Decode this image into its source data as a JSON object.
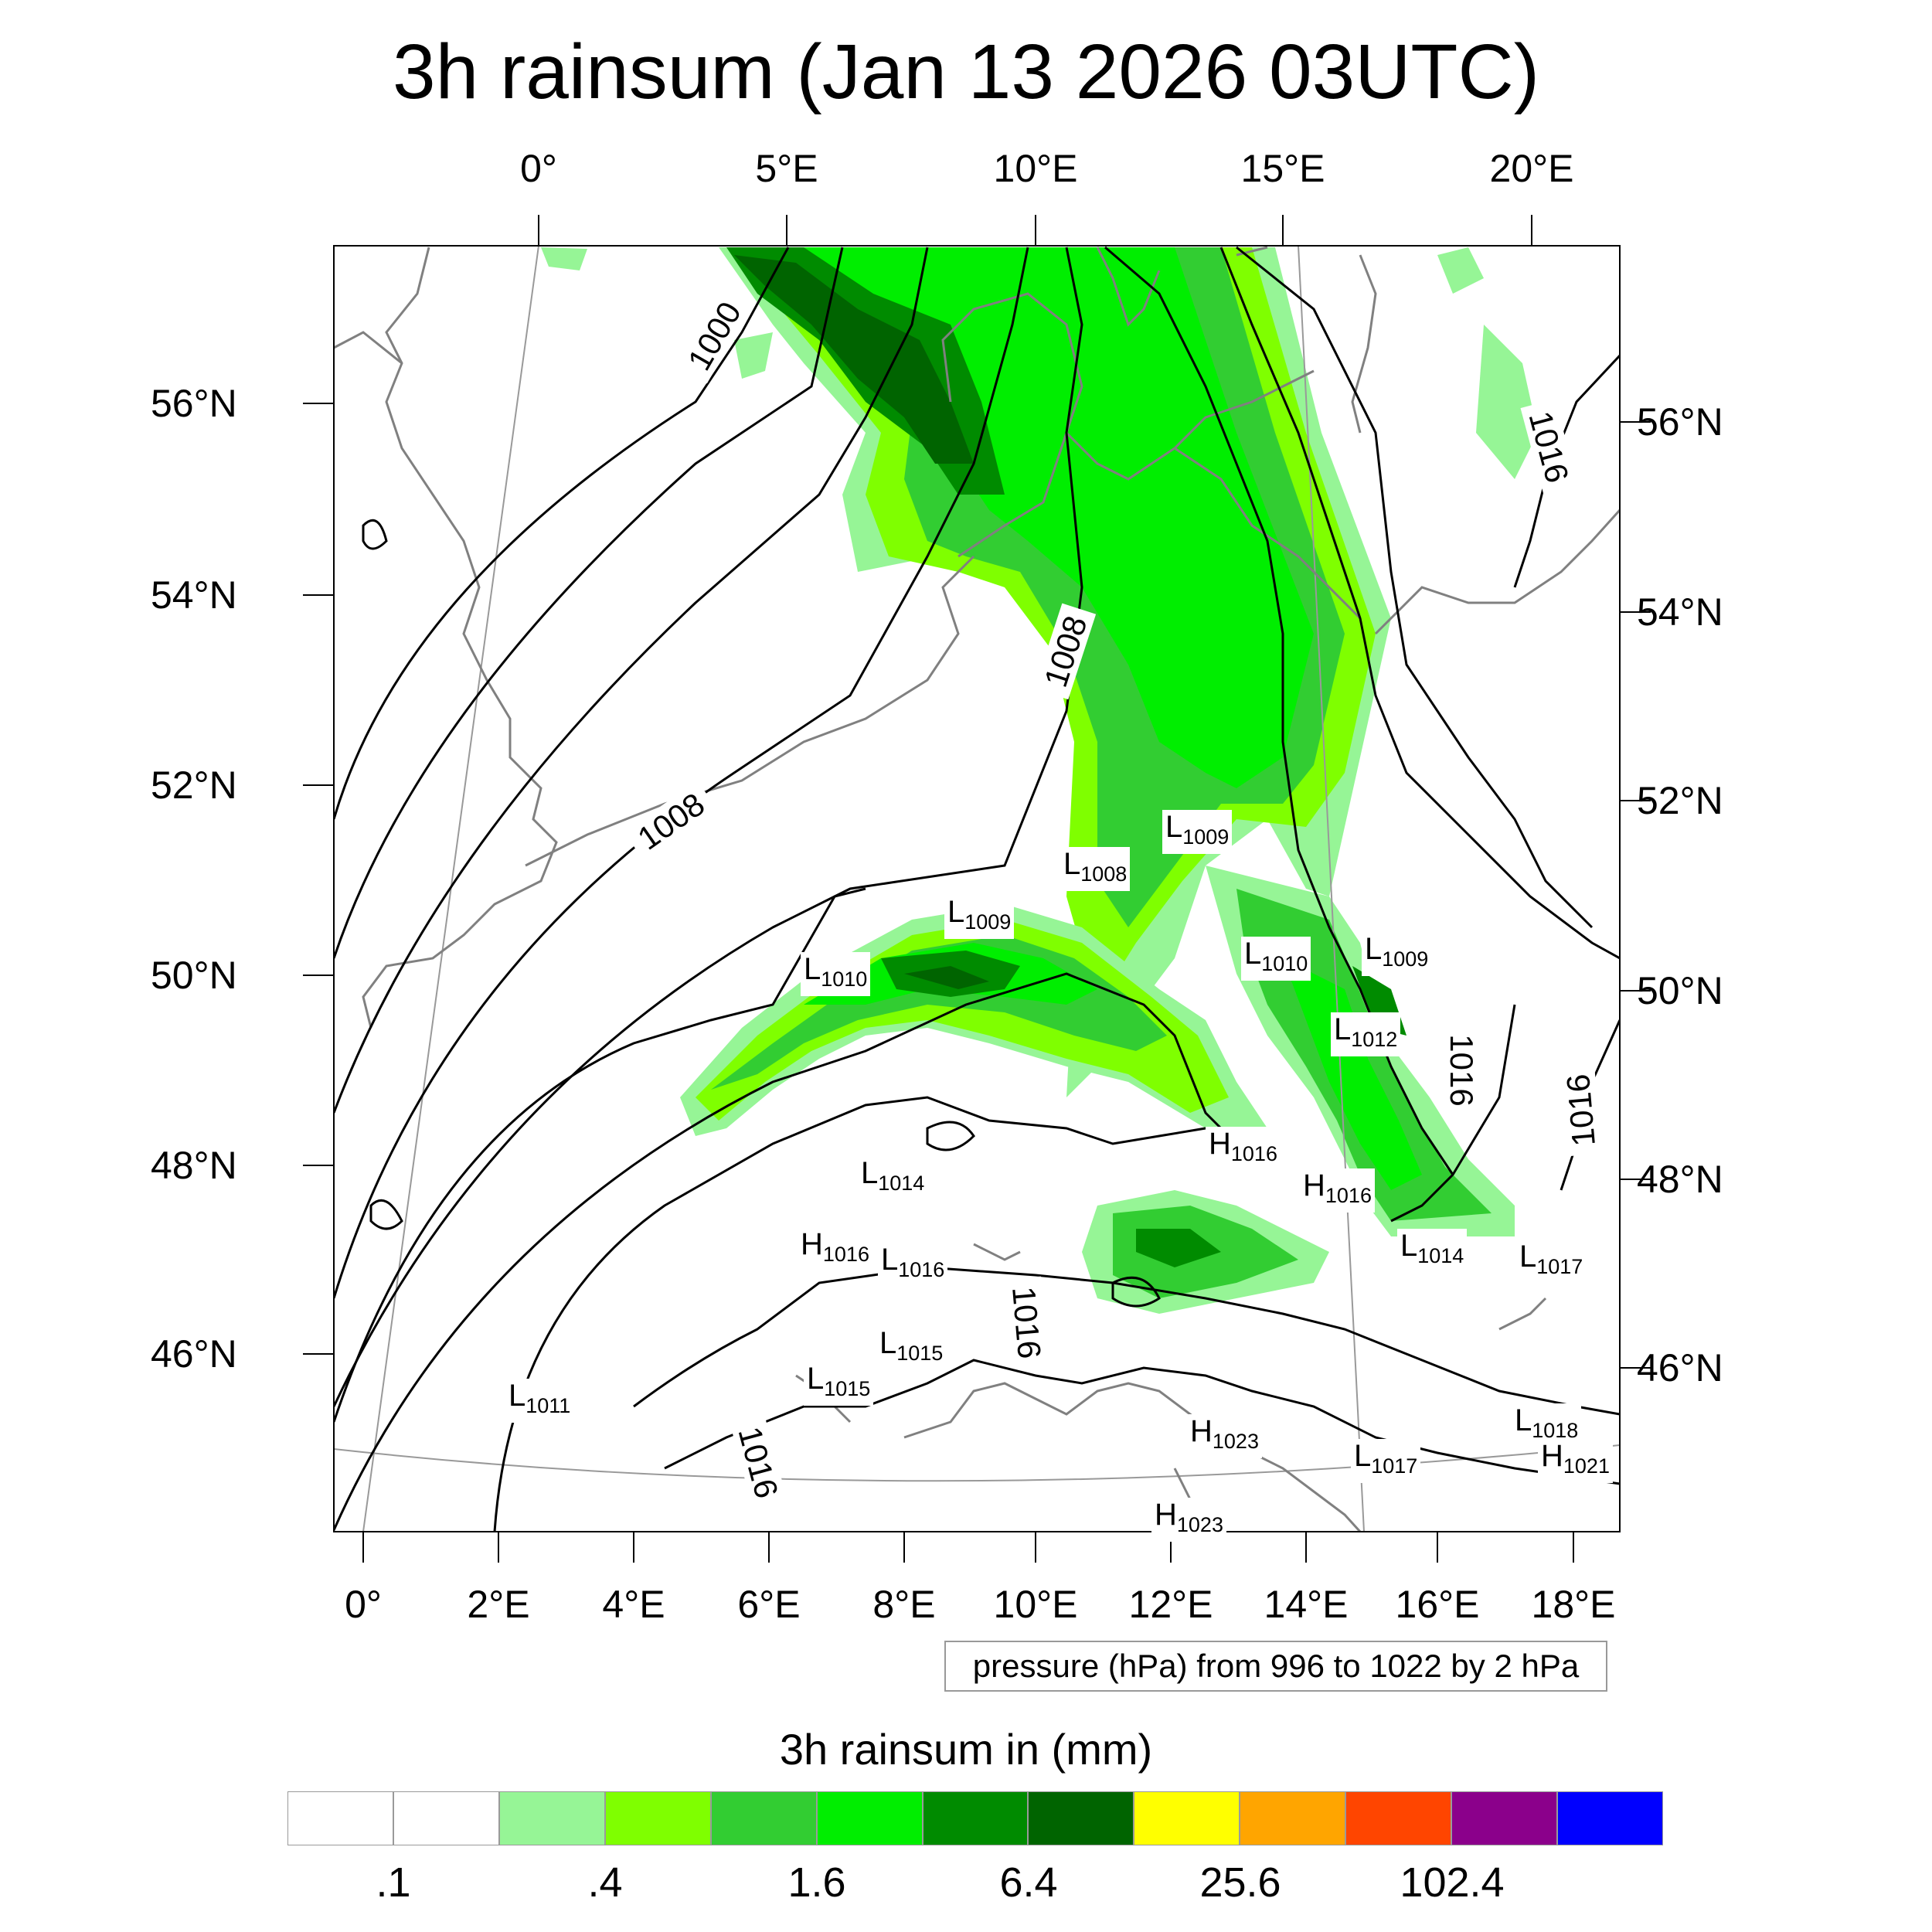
{
  "title": "3h rainsum (Jan 13 2026 03UTC)",
  "top_lon_labels": [
    "0°",
    "5°E",
    "10°E",
    "15°E",
    "20°E"
  ],
  "bottom_lon_labels": [
    "0°",
    "2°E",
    "4°E",
    "6°E",
    "8°E",
    "10°E",
    "12°E",
    "14°E",
    "16°E",
    "18°E"
  ],
  "left_lat_labels": [
    "56°N",
    "54°N",
    "52°N",
    "50°N",
    "48°N",
    "46°N"
  ],
  "right_lat_labels": [
    "56°N",
    "54°N",
    "52°N",
    "50°N",
    "48°N",
    "46°N"
  ],
  "pressure_note": "pressure (hPa) from 996 to 1022 by 2 hPa",
  "contour_labels": {
    "c1000": "1000",
    "c1008a": "1008",
    "c1008b": "1008",
    "c1016a": "1016",
    "c1016b": "1016",
    "c1016c": "1016",
    "c1016d": "1016",
    "c1016e": "1016"
  },
  "pressure_centers": [
    {
      "type": "L",
      "value": "1009"
    },
    {
      "type": "L",
      "value": "1008"
    },
    {
      "type": "L",
      "value": "1009"
    },
    {
      "type": "L",
      "value": "1010"
    },
    {
      "type": "L",
      "value": "1010"
    },
    {
      "type": "L",
      "value": "1009"
    },
    {
      "type": "L",
      "value": "1012"
    },
    {
      "type": "H",
      "value": "1016"
    },
    {
      "type": "H",
      "value": "1016"
    },
    {
      "type": "L",
      "value": "1014"
    },
    {
      "type": "H",
      "value": "1016"
    },
    {
      "type": "L",
      "value": "1016"
    },
    {
      "type": "L",
      "value": "1014"
    },
    {
      "type": "L",
      "value": "1017"
    },
    {
      "type": "L",
      "value": "1015"
    },
    {
      "type": "L",
      "value": "1015"
    },
    {
      "type": "L",
      "value": "1011"
    },
    {
      "type": "H",
      "value": "1023"
    },
    {
      "type": "L",
      "value": "1017"
    },
    {
      "type": "L",
      "value": "1018"
    },
    {
      "type": "H",
      "value": "1021"
    },
    {
      "type": "H",
      "value": "1023"
    }
  ],
  "colorbar": {
    "title": "3h rainsum in (mm)",
    "colors": [
      "#ffffff",
      "#ffffff",
      "#96f596",
      "#7fff00",
      "#32cd32",
      "#00ee00",
      "#008b00",
      "#006400",
      "#ffff00",
      "#ffa500",
      "#ff4500",
      "#8b008b",
      "#0000ff"
    ],
    "labels": [
      ".1",
      ".4",
      "1.6",
      "6.4",
      "25.6",
      "102.4"
    ]
  },
  "legend_colors": {
    "contour": "#000000",
    "coastline": "#808080",
    "graticule": "#999999"
  }
}
